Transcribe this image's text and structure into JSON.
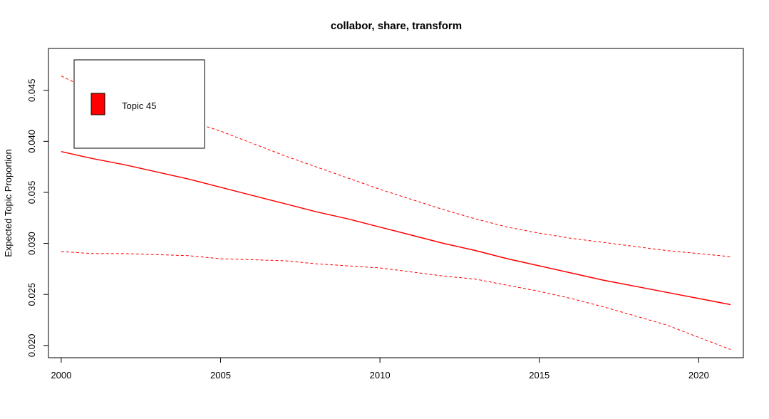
{
  "chart_data": {
    "type": "line",
    "title": "collabor, share, transform",
    "xlabel": "",
    "ylabel": "Expected Topic Proportion",
    "xlim": [
      1999.6,
      2021.4
    ],
    "ylim": [
      0.0188,
      0.0491
    ],
    "xticks": [
      "2000",
      "2005",
      "2010",
      "2015",
      "2020"
    ],
    "yticks": [
      "0.020",
      "0.025",
      "0.030",
      "0.035",
      "0.040",
      "0.045"
    ],
    "legend": {
      "position": "top-left",
      "entries": [
        {
          "label": "Topic 45",
          "color": "#ff0000"
        }
      ]
    },
    "x": [
      2000,
      2001,
      2002,
      2003,
      2004,
      2005,
      2006,
      2007,
      2008,
      2009,
      2010,
      2011,
      2012,
      2013,
      2014,
      2015,
      2016,
      2017,
      2018,
      2019,
      2020,
      2021
    ],
    "series": [
      {
        "role": "estimate",
        "color": "#ff0000",
        "style": "solid",
        "values": [
          0.039,
          0.0383,
          0.0377,
          0.037,
          0.0363,
          0.0355,
          0.0347,
          0.0339,
          0.0331,
          0.0324,
          0.0316,
          0.0308,
          0.03,
          0.0293,
          0.0285,
          0.0278,
          0.0271,
          0.0264,
          0.0258,
          0.0252,
          0.0246,
          0.024
        ]
      },
      {
        "role": "upper",
        "color": "#ff0000",
        "style": "dashed",
        "values": [
          0.0464,
          0.0449,
          0.0438,
          0.0429,
          0.042,
          0.041,
          0.0398,
          0.0386,
          0.0375,
          0.0364,
          0.0353,
          0.0343,
          0.0333,
          0.0324,
          0.0316,
          0.031,
          0.0305,
          0.0301,
          0.0297,
          0.0293,
          0.029,
          0.0287
        ]
      },
      {
        "role": "lower",
        "color": "#ff0000",
        "style": "dashed",
        "values": [
          0.0292,
          0.029,
          0.029,
          0.0289,
          0.0288,
          0.0285,
          0.0284,
          0.0283,
          0.028,
          0.0278,
          0.0276,
          0.0272,
          0.0268,
          0.0265,
          0.0259,
          0.0253,
          0.0246,
          0.0238,
          0.0229,
          0.022,
          0.0208,
          0.0196
        ]
      }
    ]
  }
}
